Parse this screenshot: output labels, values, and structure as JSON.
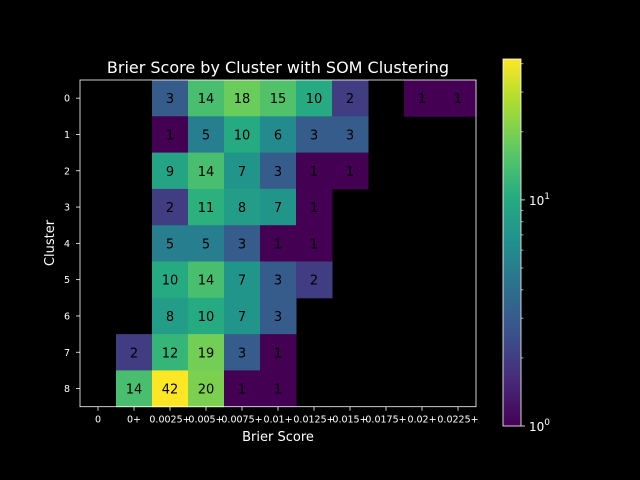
{
  "chart_data": {
    "type": "heatmap",
    "title": "Brier Score by Cluster with SOM Clustering",
    "xlabel": "Brier Score",
    "ylabel": "Cluster",
    "x_categories": [
      "0",
      "0+",
      "0.0025+",
      "0.005+",
      "0.0075+",
      "0.01+",
      "0.0125+",
      "0.015+",
      "0.0175+",
      "0.02+",
      "0.0225+"
    ],
    "y_categories": [
      "0",
      "1",
      "2",
      "3",
      "4",
      "5",
      "6",
      "7",
      "8"
    ],
    "values": [
      [
        null,
        null,
        3,
        14,
        18,
        15,
        10,
        2,
        null,
        1,
        1
      ],
      [
        null,
        null,
        1,
        5,
        10,
        6,
        3,
        3,
        null,
        null,
        null
      ],
      [
        null,
        null,
        9,
        14,
        7,
        3,
        1,
        1,
        null,
        null,
        null
      ],
      [
        null,
        null,
        2,
        11,
        8,
        7,
        1,
        null,
        null,
        null,
        null
      ],
      [
        null,
        null,
        5,
        5,
        3,
        1,
        1,
        null,
        null,
        null,
        null
      ],
      [
        null,
        null,
        10,
        14,
        7,
        3,
        2,
        null,
        null,
        null,
        null
      ],
      [
        null,
        null,
        8,
        10,
        7,
        3,
        null,
        null,
        null,
        null,
        null
      ],
      [
        null,
        2,
        12,
        19,
        3,
        1,
        null,
        null,
        null,
        null,
        null
      ],
      [
        null,
        14,
        42,
        20,
        1,
        1,
        null,
        null,
        null,
        null,
        null
      ]
    ],
    "colorscale": "viridis",
    "color_scale_type": "log",
    "colorbar": {
      "range": [
        1,
        42
      ],
      "ticks": [
        {
          "value": 1,
          "base": "10",
          "exp": "0"
        },
        {
          "value": 10,
          "base": "10",
          "exp": "1"
        }
      ]
    },
    "background": "#000000"
  }
}
